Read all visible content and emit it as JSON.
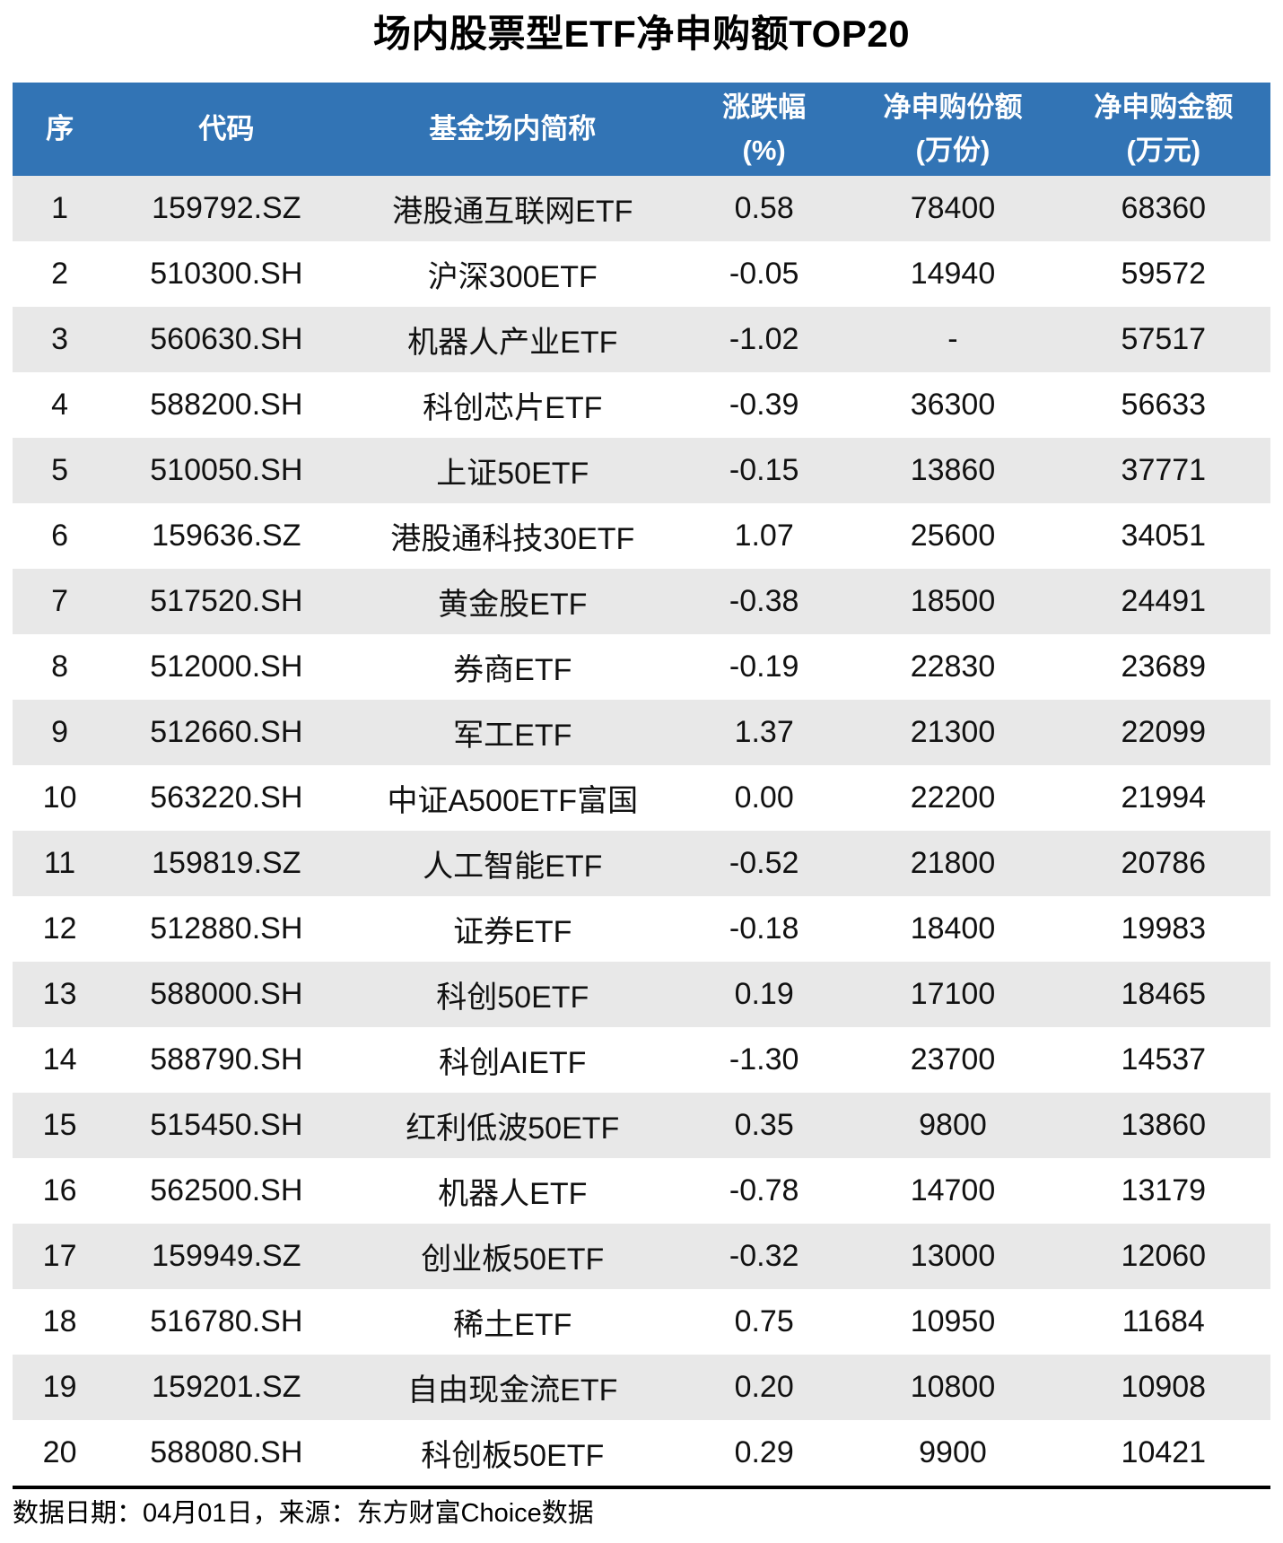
{
  "title": "场内股票型ETF净申购额TOP20",
  "colors": {
    "header_bg": "#3274B5",
    "header_text": "#FFFFFF",
    "row_alt_bg": "#E8E8E8",
    "row_bg": "#FFFFFF",
    "divider": "#000000",
    "body_text": "#111111"
  },
  "table": {
    "header_lines": [
      [
        "序"
      ],
      [
        "代码"
      ],
      [
        "基金场内简称"
      ],
      [
        "涨跌幅",
        "(%)"
      ],
      [
        "净申购份额",
        "(万份)"
      ],
      [
        "净申购金额",
        "(万元)"
      ]
    ]
  },
  "chart_data": {
    "type": "table",
    "title": "场内股票型ETF净申购额TOP20",
    "columns": [
      "序",
      "代码",
      "基金场内简称",
      "涨跌幅(%)",
      "净申购份额(万份)",
      "净申购金额(万元)"
    ],
    "rows": [
      [
        "1",
        "159792.SZ",
        "港股通互联网ETF",
        "0.58",
        "78400",
        "68360"
      ],
      [
        "2",
        "510300.SH",
        "沪深300ETF",
        "-0.05",
        "14940",
        "59572"
      ],
      [
        "3",
        "560630.SH",
        "机器人产业ETF",
        "-1.02",
        "-",
        "57517"
      ],
      [
        "4",
        "588200.SH",
        "科创芯片ETF",
        "-0.39",
        "36300",
        "56633"
      ],
      [
        "5",
        "510050.SH",
        "上证50ETF",
        "-0.15",
        "13860",
        "37771"
      ],
      [
        "6",
        "159636.SZ",
        "港股通科技30ETF",
        "1.07",
        "25600",
        "34051"
      ],
      [
        "7",
        "517520.SH",
        "黄金股ETF",
        "-0.38",
        "18500",
        "24491"
      ],
      [
        "8",
        "512000.SH",
        "券商ETF",
        "-0.19",
        "22830",
        "23689"
      ],
      [
        "9",
        "512660.SH",
        "军工ETF",
        "1.37",
        "21300",
        "22099"
      ],
      [
        "10",
        "563220.SH",
        "中证A500ETF富国",
        "0.00",
        "22200",
        "21994"
      ],
      [
        "11",
        "159819.SZ",
        "人工智能ETF",
        "-0.52",
        "21800",
        "20786"
      ],
      [
        "12",
        "512880.SH",
        "证券ETF",
        "-0.18",
        "18400",
        "19983"
      ],
      [
        "13",
        "588000.SH",
        "科创50ETF",
        "0.19",
        "17100",
        "18465"
      ],
      [
        "14",
        "588790.SH",
        "科创AIETF",
        "-1.30",
        "23700",
        "14537"
      ],
      [
        "15",
        "515450.SH",
        "红利低波50ETF",
        "0.35",
        "9800",
        "13860"
      ],
      [
        "16",
        "562500.SH",
        "机器人ETF",
        "-0.78",
        "14700",
        "13179"
      ],
      [
        "17",
        "159949.SZ",
        "创业板50ETF",
        "-0.32",
        "13000",
        "12060"
      ],
      [
        "18",
        "516780.SH",
        "稀土ETF",
        "0.75",
        "10950",
        "11684"
      ],
      [
        "19",
        "159201.SZ",
        "自由现金流ETF",
        "0.20",
        "10800",
        "10908"
      ],
      [
        "20",
        "588080.SH",
        "科创板50ETF",
        "0.29",
        "9900",
        "10421"
      ]
    ],
    "layout": {
      "striped": true,
      "stripe_on": "odd-rows",
      "header_rows": 1
    }
  },
  "footer": {
    "note": "数据日期：04月01日，来源：东方财富Choice数据"
  }
}
